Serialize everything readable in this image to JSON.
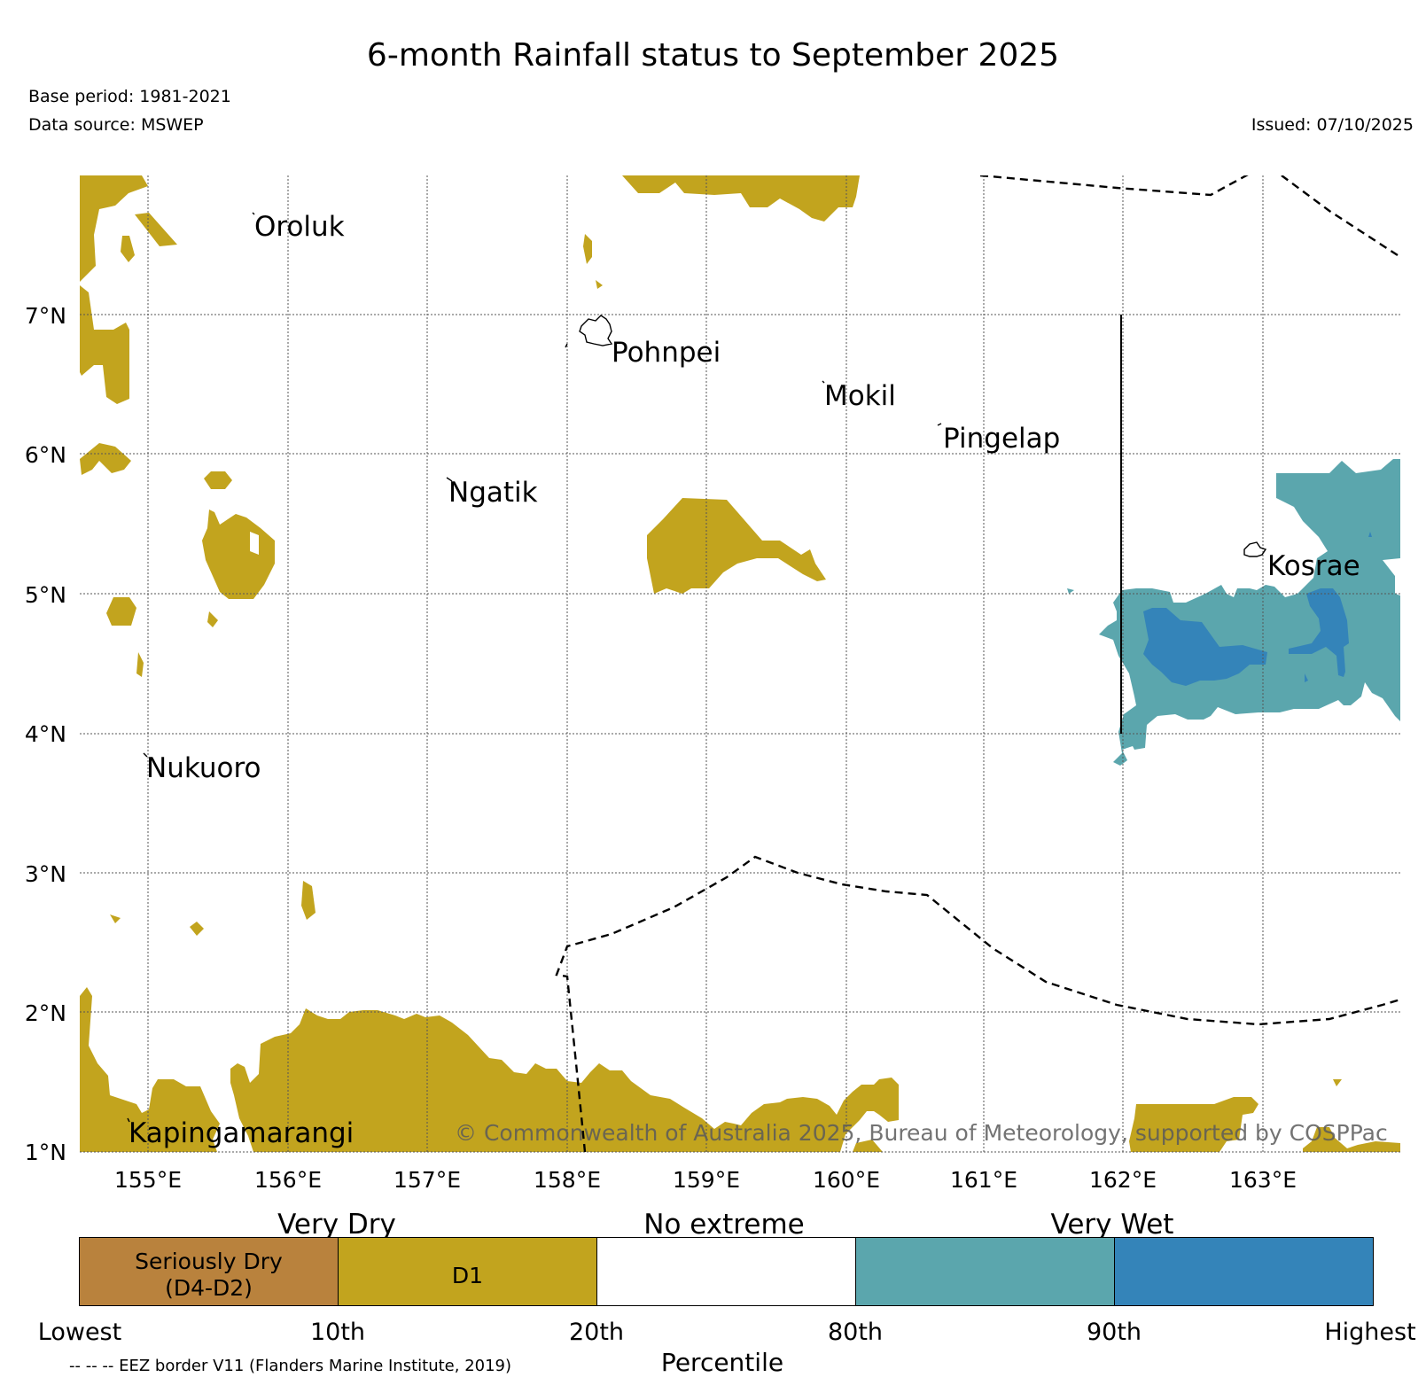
{
  "title": "6-month Rainfall status to September 2025",
  "base_period": "Base period: 1981-2021",
  "data_source": "Data source: MSWEP",
  "issued": "Issued: 07/10/2025",
  "copyright": "© Commonwealth of Australia 2025, Bureau of Meteorology, supported by COSPPac",
  "map": {
    "lat_labels": [
      "1°N",
      "2°N",
      "3°N",
      "4°N",
      "5°N",
      "6°N",
      "7°N"
    ],
    "lon_labels": [
      "155°E",
      "156°E",
      "157°E",
      "158°E",
      "159°E",
      "160°E",
      "161°E",
      "162°E",
      "163°E"
    ],
    "places": {
      "oroluk": "Oroluk",
      "pohnpei": "Pohnpei",
      "mokil": "Mokil",
      "pingelap": "Pingelap",
      "ngatik": "Ngatik",
      "kosrae": "Kosrae",
      "nukuoro": "Nukuoro",
      "kapingamarangi": "Kapingamarangi"
    },
    "colors": {
      "seriously_dry": "#b9823d",
      "d1": "#c2a41e",
      "no_extreme": "#ffffff",
      "wet": "#5ba6ad",
      "very_wet": "#3484b9"
    }
  },
  "legend": {
    "captions": {
      "very_dry": "Very Dry",
      "no_extreme": "No extreme",
      "very_wet": "Very Wet"
    },
    "seg1_line1": "Seriously Dry",
    "seg1_line2": "(D4-D2)",
    "seg2": "D1",
    "ticks": {
      "lowest": "Lowest",
      "p10": "10th",
      "p20": "20th",
      "p80": "80th",
      "p90": "90th",
      "highest": "Highest"
    },
    "xlabel": "Percentile",
    "footnote": "-- -- -- EEZ border V11 (Flanders Marine Institute, 2019)"
  }
}
